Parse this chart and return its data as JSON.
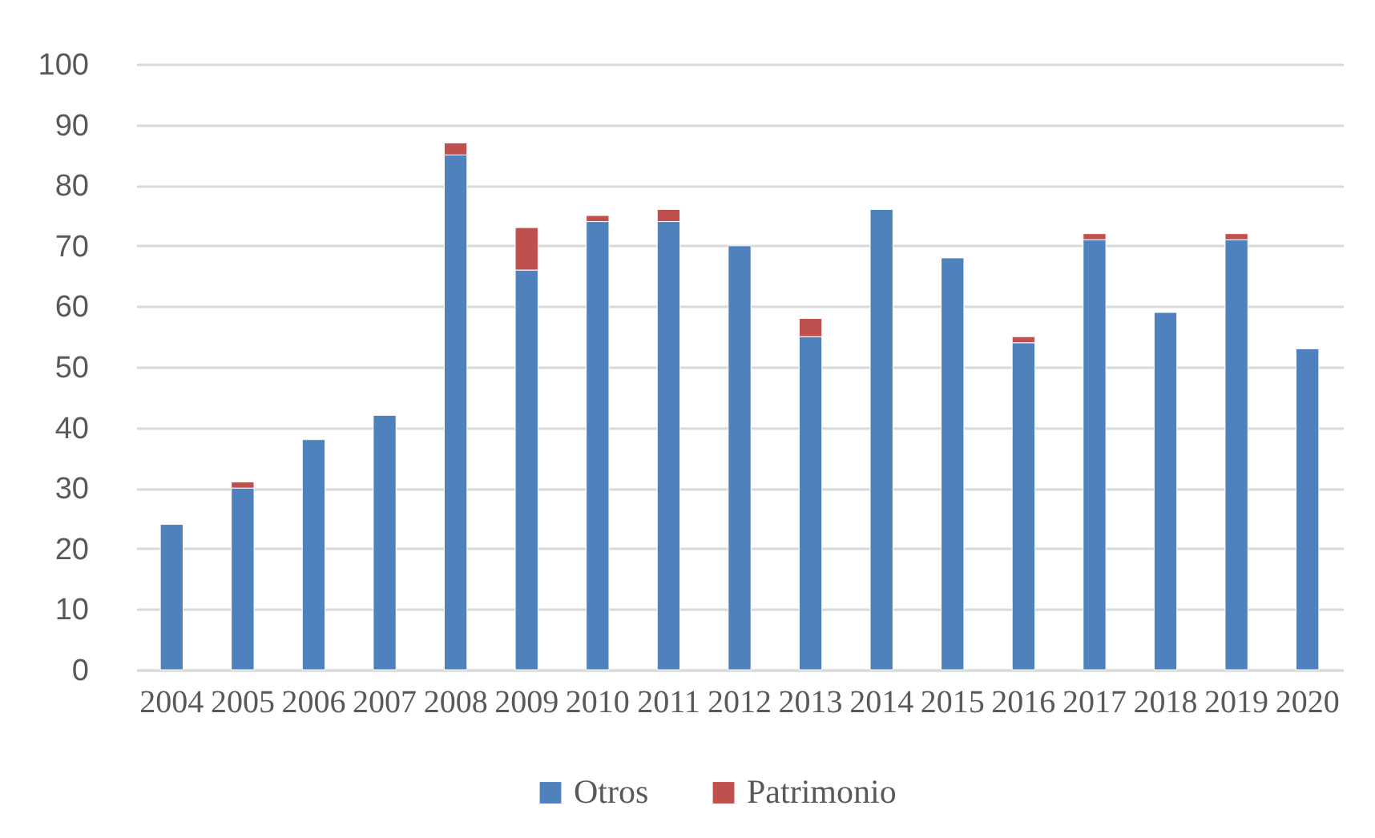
{
  "chart_data": {
    "type": "bar",
    "stacked": true,
    "categories": [
      "2004",
      "2005",
      "2006",
      "2007",
      "2008",
      "2009",
      "2010",
      "2011",
      "2012",
      "2013",
      "2014",
      "2015",
      "2016",
      "2017",
      "2018",
      "2019",
      "2020"
    ],
    "series": [
      {
        "name": "Otros",
        "color": "#4f81bd",
        "values": [
          24,
          30,
          38,
          42,
          85,
          66,
          74,
          74,
          70,
          55,
          76,
          68,
          54,
          71,
          59,
          71,
          53
        ]
      },
      {
        "name": "Patrimonio",
        "color": "#c0504d",
        "values": [
          null,
          1,
          null,
          null,
          2,
          7,
          1,
          2,
          null,
          3,
          null,
          null,
          1,
          1,
          null,
          1,
          null
        ]
      }
    ],
    "ylim": [
      0,
      100
    ],
    "yticks": [
      0,
      10,
      20,
      30,
      40,
      50,
      60,
      70,
      80,
      90,
      100
    ],
    "grid": "y",
    "legend": "bottom"
  }
}
